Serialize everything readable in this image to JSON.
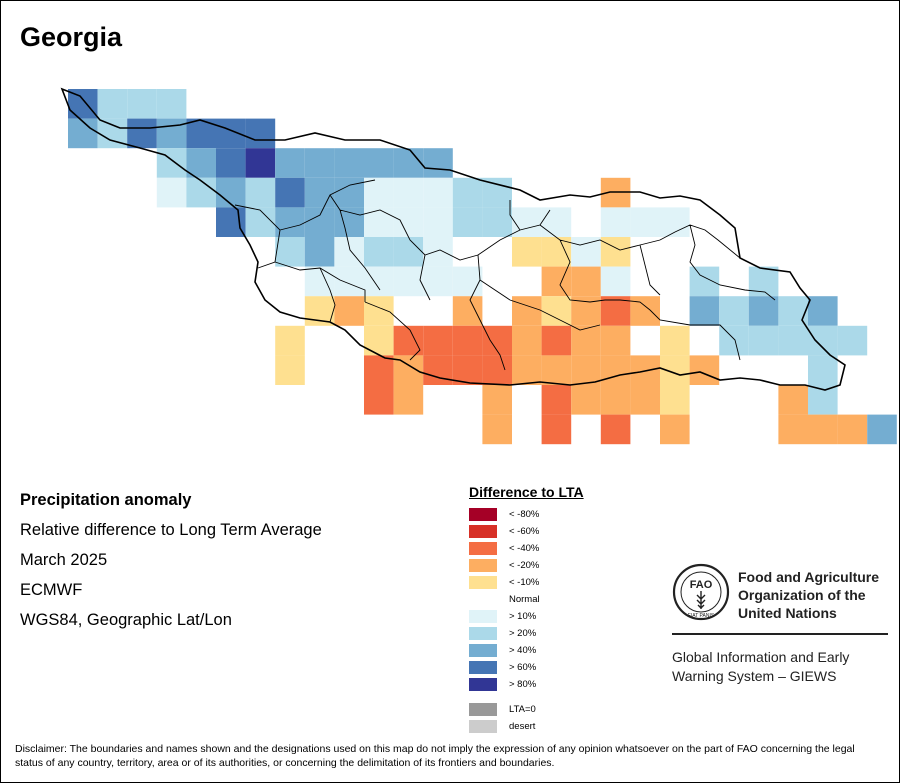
{
  "title": "Georgia",
  "info": {
    "heading": "Precipitation anomaly",
    "line1": "Relative difference to Long Term Average",
    "line2": "March 2025",
    "line3": "ECMWF",
    "line4": "WGS84, Geographic Lat/Lon"
  },
  "legend": {
    "title": "Difference to LTA",
    "classes": [
      {
        "label": "< -80%",
        "color": "#a50026"
      },
      {
        "label": "< -60%",
        "color": "#d73027"
      },
      {
        "label": "< -40%",
        "color": "#f46d43"
      },
      {
        "label": "< -20%",
        "color": "#fdae61"
      },
      {
        "label": "< -10%",
        "color": "#fee090"
      },
      {
        "label": "Normal",
        "color": "#ffffff"
      },
      {
        "label": "> 10%",
        "color": "#e0f3f8"
      },
      {
        "label": "> 20%",
        "color": "#abd9e9"
      },
      {
        "label": "> 40%",
        "color": "#74add1"
      },
      {
        "label": "> 60%",
        "color": "#4575b4"
      },
      {
        "label": "> 80%",
        "color": "#313695"
      }
    ],
    "extra": [
      {
        "label": "LTA=0",
        "color": "#999999"
      },
      {
        "label": "desert",
        "color": "#cccccc"
      }
    ]
  },
  "fao": {
    "org_line1": "Food and Agriculture",
    "org_line2": "Organization of the",
    "org_line3": "United Nations",
    "giews_line1": "Global Information and Early",
    "giews_line2": "Warning System – GIEWS",
    "emblem_text": "FAO",
    "motto": "FIAT PANIS"
  },
  "disclaimer": "Disclaimer: The boundaries and names shown and the designations used on this map do not imply the expression of any opinion whatsoever on the part of FAO concerning the legal status of any country, territory, area or of its authorities, or concerning the delimitation of its frontiers and boundaries.",
  "grid": {
    "classes": {
      "8": "#fdae61",
      "10": "#fee090",
      "-10": "#e0f3f8",
      "-20": "#abd9e9",
      "-40": "#74add1",
      "-60": "#4575b4",
      "-80": "#313695",
      "40": "#f46d43"
    },
    "cells": [
      [
        {
          "r": 0,
          "c": 0,
          "v": -60
        },
        {
          "r": 0,
          "c": 1,
          "v": -20
        },
        {
          "r": 0,
          "c": 2,
          "v": -20
        },
        {
          "r": 0,
          "c": 3,
          "v": -20
        }
      ],
      [
        {
          "r": 1,
          "c": 0,
          "v": -40
        },
        {
          "r": 1,
          "c": 1,
          "v": -20
        },
        {
          "r": 1,
          "c": 2,
          "v": -60
        },
        {
          "r": 1,
          "c": 3,
          "v": -40
        },
        {
          "r": 1,
          "c": 4,
          "v": -60
        },
        {
          "r": 1,
          "c": 5,
          "v": -60
        },
        {
          "r": 1,
          "c": 6,
          "v": -60
        }
      ],
      [
        {
          "r": 2,
          "c": 3,
          "v": -20
        },
        {
          "r": 2,
          "c": 4,
          "v": -40
        },
        {
          "r": 2,
          "c": 5,
          "v": -60
        },
        {
          "r": 2,
          "c": 6,
          "v": -80
        },
        {
          "r": 2,
          "c": 7,
          "v": -40
        },
        {
          "r": 2,
          "c": 8,
          "v": -40
        },
        {
          "r": 2,
          "c": 9,
          "v": -40
        },
        {
          "r": 2,
          "c": 10,
          "v": -40
        },
        {
          "r": 2,
          "c": 11,
          "v": -40
        },
        {
          "r": 2,
          "c": 12,
          "v": -40
        }
      ],
      [
        {
          "r": 3,
          "c": 3,
          "v": -10
        },
        {
          "r": 3,
          "c": 4,
          "v": -20
        },
        {
          "r": 3,
          "c": 5,
          "v": -40
        },
        {
          "r": 3,
          "c": 6,
          "v": -20
        },
        {
          "r": 3,
          "c": 7,
          "v": -60
        },
        {
          "r": 3,
          "c": 8,
          "v": -40
        },
        {
          "r": 3,
          "c": 9,
          "v": -40
        },
        {
          "r": 3,
          "c": 10,
          "v": -10
        },
        {
          "r": 3,
          "c": 11,
          "v": -10
        },
        {
          "r": 3,
          "c": 12,
          "v": -10
        },
        {
          "r": 3,
          "c": 13,
          "v": -20
        },
        {
          "r": 3,
          "c": 14,
          "v": -20
        },
        {
          "r": 3,
          "c": 18,
          "v": 8
        }
      ],
      [
        {
          "r": 4,
          "c": 5,
          "v": -60
        },
        {
          "r": 4,
          "c": 6,
          "v": -20
        },
        {
          "r": 4,
          "c": 7,
          "v": -40
        },
        {
          "r": 4,
          "c": 8,
          "v": -40
        },
        {
          "r": 4,
          "c": 9,
          "v": -40
        },
        {
          "r": 4,
          "c": 10,
          "v": -10
        },
        {
          "r": 4,
          "c": 11,
          "v": -10
        },
        {
          "r": 4,
          "c": 12,
          "v": -10
        },
        {
          "r": 4,
          "c": 13,
          "v": -20
        },
        {
          "r": 4,
          "c": 14,
          "v": -20
        },
        {
          "r": 4,
          "c": 15,
          "v": -10
        },
        {
          "r": 4,
          "c": 16,
          "v": -10
        },
        {
          "r": 4,
          "c": 18,
          "v": -10
        },
        {
          "r": 4,
          "c": 19,
          "v": -10
        },
        {
          "r": 4,
          "c": 20,
          "v": -10
        }
      ],
      [
        {
          "r": 5,
          "c": 7,
          "v": -20
        },
        {
          "r": 5,
          "c": 8,
          "v": -40
        },
        {
          "r": 5,
          "c": 9,
          "v": -10
        },
        {
          "r": 5,
          "c": 10,
          "v": -20
        },
        {
          "r": 5,
          "c": 11,
          "v": -20
        },
        {
          "r": 5,
          "c": 12,
          "v": -10
        },
        {
          "r": 5,
          "c": 15,
          "v": 10
        },
        {
          "r": 5,
          "c": 16,
          "v": 10
        },
        {
          "r": 5,
          "c": 17,
          "v": -10
        },
        {
          "r": 5,
          "c": 18,
          "v": 10
        }
      ],
      [
        {
          "r": 6,
          "c": 8,
          "v": -10
        },
        {
          "r": 6,
          "c": 9,
          "v": -10
        },
        {
          "r": 6,
          "c": 10,
          "v": -10
        },
        {
          "r": 6,
          "c": 11,
          "v": -10
        },
        {
          "r": 6,
          "c": 12,
          "v": -10
        },
        {
          "r": 6,
          "c": 13,
          "v": -10
        },
        {
          "r": 6,
          "c": 16,
          "v": 8
        },
        {
          "r": 6,
          "c": 17,
          "v": 8
        },
        {
          "r": 6,
          "c": 18,
          "v": -10
        },
        {
          "r": 6,
          "c": 21,
          "v": -20
        },
        {
          "r": 6,
          "c": 23,
          "v": -20
        }
      ],
      [
        {
          "r": 7,
          "c": 8,
          "v": 10
        },
        {
          "r": 7,
          "c": 9,
          "v": 8
        },
        {
          "r": 7,
          "c": 10,
          "v": 10
        },
        {
          "r": 7,
          "c": 13,
          "v": 8
        },
        {
          "r": 7,
          "c": 15,
          "v": 8
        },
        {
          "r": 7,
          "c": 16,
          "v": 10
        },
        {
          "r": 7,
          "c": 17,
          "v": 8
        },
        {
          "r": 7,
          "c": 18,
          "v": 40
        },
        {
          "r": 7,
          "c": 19,
          "v": 8
        },
        {
          "r": 7,
          "c": 21,
          "v": -40
        },
        {
          "r": 7,
          "c": 22,
          "v": -20
        },
        {
          "r": 7,
          "c": 23,
          "v": -40
        },
        {
          "r": 7,
          "c": 24,
          "v": -20
        },
        {
          "r": 7,
          "c": 25,
          "v": -40
        }
      ],
      [
        {
          "r": 8,
          "c": 7,
          "v": 10
        },
        {
          "r": 8,
          "c": 10,
          "v": 10
        },
        {
          "r": 8,
          "c": 11,
          "v": 40
        },
        {
          "r": 8,
          "c": 12,
          "v": 40
        },
        {
          "r": 8,
          "c": 13,
          "v": 40
        },
        {
          "r": 8,
          "c": 14,
          "v": 40
        },
        {
          "r": 8,
          "c": 15,
          "v": 8
        },
        {
          "r": 8,
          "c": 16,
          "v": 40
        },
        {
          "r": 8,
          "c": 17,
          "v": 8
        },
        {
          "r": 8,
          "c": 18,
          "v": 8
        },
        {
          "r": 8,
          "c": 20,
          "v": 10
        },
        {
          "r": 8,
          "c": 22,
          "v": -20
        },
        {
          "r": 8,
          "c": 23,
          "v": -20
        },
        {
          "r": 8,
          "c": 24,
          "v": -20
        },
        {
          "r": 8,
          "c": 25,
          "v": -20
        },
        {
          "r": 8,
          "c": 26,
          "v": -20
        }
      ],
      [
        {
          "r": 9,
          "c": 7,
          "v": 10
        },
        {
          "r": 9,
          "c": 10,
          "v": 40
        },
        {
          "r": 9,
          "c": 11,
          "v": 8
        },
        {
          "r": 9,
          "c": 12,
          "v": 40
        },
        {
          "r": 9,
          "c": 13,
          "v": 40
        },
        {
          "r": 9,
          "c": 14,
          "v": 40
        },
        {
          "r": 9,
          "c": 15,
          "v": 8
        },
        {
          "r": 9,
          "c": 16,
          "v": 8
        },
        {
          "r": 9,
          "c": 17,
          "v": 8
        },
        {
          "r": 9,
          "c": 18,
          "v": 8
        },
        {
          "r": 9,
          "c": 19,
          "v": 8
        },
        {
          "r": 9,
          "c": 20,
          "v": 10
        },
        {
          "r": 9,
          "c": 21,
          "v": 8
        },
        {
          "r": 9,
          "c": 25,
          "v": -20
        }
      ],
      [
        {
          "r": 10,
          "c": 10,
          "v": 40
        },
        {
          "r": 10,
          "c": 11,
          "v": 8
        },
        {
          "r": 10,
          "c": 14,
          "v": 8
        },
        {
          "r": 10,
          "c": 16,
          "v": 40
        },
        {
          "r": 10,
          "c": 17,
          "v": 8
        },
        {
          "r": 10,
          "c": 18,
          "v": 8
        },
        {
          "r": 10,
          "c": 19,
          "v": 8
        },
        {
          "r": 10,
          "c": 20,
          "v": 10
        },
        {
          "r": 10,
          "c": 24,
          "v": 8
        },
        {
          "r": 10,
          "c": 25,
          "v": -20
        }
      ],
      [
        {
          "r": 11,
          "c": 14,
          "v": 8
        },
        {
          "r": 11,
          "c": 16,
          "v": 40
        },
        {
          "r": 11,
          "c": 18,
          "v": 40
        },
        {
          "r": 11,
          "c": 20,
          "v": 8
        },
        {
          "r": 11,
          "c": 24,
          "v": 8
        },
        {
          "r": 11,
          "c": 25,
          "v": 8
        },
        {
          "r": 11,
          "c": 26,
          "v": 8
        },
        {
          "r": 11,
          "c": 27,
          "v": -40
        }
      ]
    ]
  }
}
